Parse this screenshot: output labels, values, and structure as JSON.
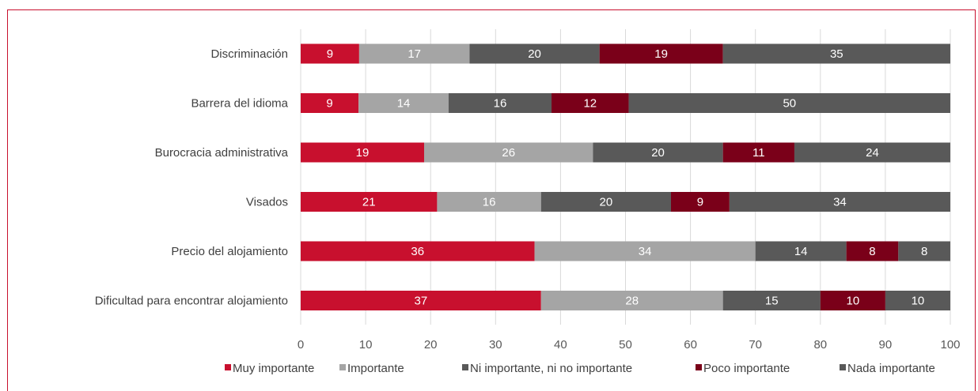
{
  "chart_data": {
    "type": "bar",
    "orientation": "horizontal",
    "stacked": true,
    "categories": [
      "Discriminación",
      "Barrera del idioma",
      "Burocracia administrativa",
      "Visados",
      "Precio del alojamiento",
      "Dificultad para encontrar alojamiento"
    ],
    "series": [
      {
        "name": "Muy importante",
        "color": "#c8102e",
        "values": [
          9,
          9,
          19,
          21,
          36,
          37
        ]
      },
      {
        "name": "Importante",
        "color": "#a5a5a5",
        "values": [
          17,
          14,
          26,
          16,
          34,
          28
        ]
      },
      {
        "name": "Ni importante, ni no importante",
        "color": "#595959",
        "values": [
          20,
          16,
          20,
          20,
          14,
          15
        ]
      },
      {
        "name": "Poco importante",
        "color": "#7a0019",
        "values": [
          19,
          12,
          11,
          9,
          8,
          10
        ]
      },
      {
        "name": "Nada importante",
        "color": "#595959",
        "values": [
          35,
          50,
          24,
          34,
          8,
          10
        ]
      }
    ],
    "xlim": [
      0,
      100
    ],
    "xticks": [
      0,
      10,
      20,
      30,
      40,
      50,
      60,
      70,
      80,
      90,
      100
    ],
    "grid": true,
    "legend_position": "bottom",
    "title": "",
    "xlabel": "",
    "ylabel": ""
  }
}
